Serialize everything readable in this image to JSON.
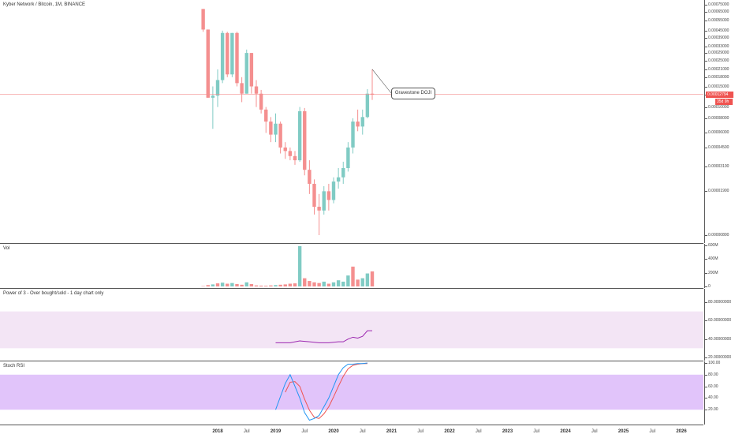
{
  "header": {
    "title": "Kyber Network / Bitcoin, 1M, BINANCE"
  },
  "price_axis": {
    "labels": [
      "0.00075000",
      "0.00065000",
      "0.00055000",
      "0.00045000",
      "0.00039000",
      "0.00033000",
      "0.00029000",
      "0.00025000",
      "0.00021000",
      "0.00018000",
      "0.00015000",
      "0.00012794",
      "0.00010000",
      "0.00008000",
      "0.00006000",
      "0.00004500",
      "0.00003100",
      "0.00001900",
      "0.00000800"
    ],
    "last_price": "0.00012794",
    "countdown": "35d 9h",
    "last_price_color": "#ef5350"
  },
  "annotation": {
    "text": "Gravestone DOJI"
  },
  "volume_pane": {
    "title": "Vol",
    "axis_labels": [
      "600M",
      "400M",
      "200M",
      "0"
    ]
  },
  "indicator_pane": {
    "title": "Power of 3 - Over bought/sold - 1 day chart only",
    "axis_labels": [
      "80.00000000",
      "60.00000000",
      "40.00000000",
      "20.00000000"
    ],
    "line_color": "#9c27b0",
    "band_color": "#f3e5f5"
  },
  "stoch_pane": {
    "title": "Stoch RSI",
    "axis_labels": [
      "100.00",
      "80.00",
      "60.00",
      "40.00",
      "20.00"
    ],
    "k_color": "#2196f3",
    "d_color": "#ef5350",
    "band_color": "#e1c4fa"
  },
  "time_axis": {
    "labels": [
      {
        "text": "2018",
        "year": true
      },
      {
        "text": "Jul",
        "year": false
      },
      {
        "text": "2019",
        "year": true
      },
      {
        "text": "Jul",
        "year": false
      },
      {
        "text": "2020",
        "year": true
      },
      {
        "text": "Jul",
        "year": false
      },
      {
        "text": "2021",
        "year": true
      },
      {
        "text": "Jul",
        "year": false
      },
      {
        "text": "2022",
        "year": true
      },
      {
        "text": "Jul",
        "year": false
      },
      {
        "text": "2023",
        "year": true
      },
      {
        "text": "Jul",
        "year": false
      },
      {
        "text": "2024",
        "year": true
      },
      {
        "text": "Jul",
        "year": false
      },
      {
        "text": "2025",
        "year": true
      },
      {
        "text": "Jul",
        "year": false
      },
      {
        "text": "2026",
        "year": true
      }
    ]
  },
  "colors": {
    "up": "#26a69a",
    "up_fill": "#80cbc4",
    "down": "#ef9a9a",
    "down_fill": "#f48f8f"
  },
  "chart_data": {
    "type": "candlestick",
    "interval": "1M",
    "symbol": "KNC/BTC",
    "candles": [
      {
        "t": "2017-10",
        "o": 0.00069,
        "h": 0.00069,
        "l": 0.00044,
        "c": 0.00046
      },
      {
        "t": "2017-11",
        "o": 0.00046,
        "h": 0.00046,
        "l": 0.00012,
        "c": 0.00012
      },
      {
        "t": "2017-12",
        "o": 0.00012,
        "h": 0.00015,
        "l": 6.5e-05,
        "c": 0.000125
      },
      {
        "t": "2018-01",
        "o": 0.000125,
        "h": 0.00021,
        "l": 0.0001,
        "c": 0.00017
      },
      {
        "t": "2018-02",
        "o": 0.00017,
        "h": 0.00045,
        "l": 0.00016,
        "c": 0.00043
      },
      {
        "t": "2018-03",
        "o": 0.00043,
        "h": 0.00044,
        "l": 0.00018,
        "c": 0.00019
      },
      {
        "t": "2018-04",
        "o": 0.00019,
        "h": 0.00043,
        "l": 0.00018,
        "c": 0.00043
      },
      {
        "t": "2018-05",
        "o": 0.00043,
        "h": 0.00044,
        "l": 0.00015,
        "c": 0.00016
      },
      {
        "t": "2018-06",
        "o": 0.00016,
        "h": 0.00018,
        "l": 0.00011,
        "c": 0.00013
      },
      {
        "t": "2018-07",
        "o": 0.00013,
        "h": 0.00031,
        "l": 0.00013,
        "c": 0.00029
      },
      {
        "t": "2018-08",
        "o": 0.00029,
        "h": 0.00029,
        "l": 0.00013,
        "c": 0.00015
      },
      {
        "t": "2018-09",
        "o": 0.00015,
        "h": 0.00017,
        "l": 0.0001,
        "c": 0.00013
      },
      {
        "t": "2018-10",
        "o": 0.00013,
        "h": 0.00014,
        "l": 8.8e-05,
        "c": 9.5e-05
      },
      {
        "t": "2018-11",
        "o": 9.5e-05,
        "h": 0.0001,
        "l": 6e-05,
        "c": 7.5e-05
      },
      {
        "t": "2018-12",
        "o": 7.5e-05,
        "h": 8.2e-05,
        "l": 5e-05,
        "c": 5.8e-05
      },
      {
        "t": "2019-01",
        "o": 5.8e-05,
        "h": 8.8e-05,
        "l": 5e-05,
        "c": 7.2e-05
      },
      {
        "t": "2019-02",
        "o": 7.2e-05,
        "h": 7.5e-05,
        "l": 4e-05,
        "c": 4.5e-05
      },
      {
        "t": "2019-03",
        "o": 4.5e-05,
        "h": 5e-05,
        "l": 3.6e-05,
        "c": 4.2e-05
      },
      {
        "t": "2019-04",
        "o": 4.2e-05,
        "h": 4.5e-05,
        "l": 3.5e-05,
        "c": 3.8e-05
      },
      {
        "t": "2019-05",
        "o": 3.8e-05,
        "h": 4.2e-05,
        "l": 3.2e-05,
        "c": 3.5e-05
      },
      {
        "t": "2019-06",
        "o": 3.5e-05,
        "h": 0.0001,
        "l": 3.4e-05,
        "c": 9.2e-05
      },
      {
        "t": "2019-07",
        "o": 9.2e-05,
        "h": 9.8e-05,
        "l": 2.6e-05,
        "c": 2.9e-05
      },
      {
        "t": "2019-08",
        "o": 2.9e-05,
        "h": 3.5e-05,
        "l": 1.8e-05,
        "c": 2.2e-05
      },
      {
        "t": "2019-09",
        "o": 2.2e-05,
        "h": 2.4e-05,
        "l": 1.2e-05,
        "c": 1.4e-05
      },
      {
        "t": "2019-10",
        "o": 1.4e-05,
        "h": 1.8e-05,
        "l": 8e-06,
        "c": 1.3e-05
      },
      {
        "t": "2019-11",
        "o": 1.3e-05,
        "h": 2.1e-05,
        "l": 1.2e-05,
        "c": 1.9e-05
      },
      {
        "t": "2019-12",
        "o": 1.9e-05,
        "h": 2.2e-05,
        "l": 1.3e-05,
        "c": 1.6e-05
      },
      {
        "t": "2020-01",
        "o": 1.6e-05,
        "h": 2.5e-05,
        "l": 1.5e-05,
        "c": 2.3e-05
      },
      {
        "t": "2020-02",
        "o": 2.3e-05,
        "h": 3e-05,
        "l": 2e-05,
        "c": 2.5e-05
      },
      {
        "t": "2020-03",
        "o": 2.5e-05,
        "h": 3.4e-05,
        "l": 2.2e-05,
        "c": 3e-05
      },
      {
        "t": "2020-04",
        "o": 3e-05,
        "h": 5e-05,
        "l": 2.8e-05,
        "c": 4.5e-05
      },
      {
        "t": "2020-05",
        "o": 4.5e-05,
        "h": 8e-05,
        "l": 4e-05,
        "c": 7.5e-05
      },
      {
        "t": "2020-06",
        "o": 7.5e-05,
        "h": 9.5e-05,
        "l": 6.2e-05,
        "c": 6.8e-05
      },
      {
        "t": "2020-07",
        "o": 6.8e-05,
        "h": 9.5e-05,
        "l": 5.8e-05,
        "c": 8.2e-05
      },
      {
        "t": "2020-08",
        "o": 8.2e-05,
        "h": 0.000142,
        "l": 8e-05,
        "c": 0.00013
      },
      {
        "t": "2020-09",
        "o": 0.00013,
        "h": 0.00021,
        "l": 0.000115,
        "c": 0.000128
      }
    ],
    "volume": [
      {
        "t": "2017-10",
        "v": 5,
        "dir": "down"
      },
      {
        "t": "2017-11",
        "v": 20,
        "dir": "down"
      },
      {
        "t": "2017-12",
        "v": 30,
        "dir": "up"
      },
      {
        "t": "2018-01",
        "v": 45,
        "dir": "down"
      },
      {
        "t": "2018-02",
        "v": 55,
        "dir": "up"
      },
      {
        "t": "2018-03",
        "v": 40,
        "dir": "down"
      },
      {
        "t": "2018-04",
        "v": 50,
        "dir": "up"
      },
      {
        "t": "2018-05",
        "v": 35,
        "dir": "down"
      },
      {
        "t": "2018-06",
        "v": 25,
        "dir": "down"
      },
      {
        "t": "2018-07",
        "v": 60,
        "dir": "up"
      },
      {
        "t": "2018-08",
        "v": 35,
        "dir": "down"
      },
      {
        "t": "2018-09",
        "v": 15,
        "dir": "down"
      },
      {
        "t": "2018-10",
        "v": 12,
        "dir": "down"
      },
      {
        "t": "2018-11",
        "v": 10,
        "dir": "down"
      },
      {
        "t": "2018-12",
        "v": 15,
        "dir": "down"
      },
      {
        "t": "2019-01",
        "v": 20,
        "dir": "up"
      },
      {
        "t": "2019-02",
        "v": 25,
        "dir": "down"
      },
      {
        "t": "2019-03",
        "v": 30,
        "dir": "down"
      },
      {
        "t": "2019-04",
        "v": 40,
        "dir": "down"
      },
      {
        "t": "2019-05",
        "v": 45,
        "dir": "down"
      },
      {
        "t": "2019-06",
        "v": 590,
        "dir": "up"
      },
      {
        "t": "2019-07",
        "v": 120,
        "dir": "down"
      },
      {
        "t": "2019-08",
        "v": 80,
        "dir": "down"
      },
      {
        "t": "2019-09",
        "v": 60,
        "dir": "down"
      },
      {
        "t": "2019-10",
        "v": 50,
        "dir": "down"
      },
      {
        "t": "2019-11",
        "v": 70,
        "dir": "up"
      },
      {
        "t": "2019-12",
        "v": 40,
        "dir": "down"
      },
      {
        "t": "2020-01",
        "v": 60,
        "dir": "up"
      },
      {
        "t": "2020-02",
        "v": 90,
        "dir": "up"
      },
      {
        "t": "2020-03",
        "v": 70,
        "dir": "up"
      },
      {
        "t": "2020-04",
        "v": 160,
        "dir": "up"
      },
      {
        "t": "2020-05",
        "v": 290,
        "dir": "down"
      },
      {
        "t": "2020-06",
        "v": 100,
        "dir": "down"
      },
      {
        "t": "2020-07",
        "v": 120,
        "dir": "up"
      },
      {
        "t": "2020-08",
        "v": 190,
        "dir": "up"
      },
      {
        "t": "2020-09",
        "v": 220,
        "dir": "down"
      }
    ],
    "indicator": [
      {
        "t": "2019-01",
        "v": 36
      },
      {
        "t": "2019-04",
        "v": 36
      },
      {
        "t": "2019-06",
        "v": 38
      },
      {
        "t": "2019-08",
        "v": 37
      },
      {
        "t": "2019-10",
        "v": 36
      },
      {
        "t": "2019-12",
        "v": 36
      },
      {
        "t": "2020-02",
        "v": 37
      },
      {
        "t": "2020-03",
        "v": 37
      },
      {
        "t": "2020-04",
        "v": 40
      },
      {
        "t": "2020-05",
        "v": 42
      },
      {
        "t": "2020-06",
        "v": 41
      },
      {
        "t": "2020-07",
        "v": 43
      },
      {
        "t": "2020-08",
        "v": 49
      },
      {
        "t": "2020-09",
        "v": 49
      }
    ],
    "stoch_k": [
      {
        "t": "2019-01",
        "v": 20
      },
      {
        "t": "2019-03",
        "v": 65
      },
      {
        "t": "2019-04",
        "v": 80
      },
      {
        "t": "2019-05",
        "v": 60
      },
      {
        "t": "2019-06",
        "v": 40
      },
      {
        "t": "2019-07",
        "v": 15
      },
      {
        "t": "2019-08",
        "v": 2
      },
      {
        "t": "2019-09",
        "v": 5
      },
      {
        "t": "2019-10",
        "v": 10
      },
      {
        "t": "2019-11",
        "v": 25
      },
      {
        "t": "2019-12",
        "v": 40
      },
      {
        "t": "2020-01",
        "v": 60
      },
      {
        "t": "2020-02",
        "v": 80
      },
      {
        "t": "2020-03",
        "v": 92
      },
      {
        "t": "2020-04",
        "v": 98
      },
      {
        "t": "2020-05",
        "v": 98
      },
      {
        "t": "2020-06",
        "v": 99
      },
      {
        "t": "2020-07",
        "v": 99
      },
      {
        "t": "2020-08",
        "v": 100
      }
    ],
    "stoch_d": [
      {
        "t": "2019-03",
        "v": 50
      },
      {
        "t": "2019-04",
        "v": 67
      },
      {
        "t": "2019-05",
        "v": 68
      },
      {
        "t": "2019-06",
        "v": 60
      },
      {
        "t": "2019-07",
        "v": 38
      },
      {
        "t": "2019-08",
        "v": 19
      },
      {
        "t": "2019-09",
        "v": 7
      },
      {
        "t": "2019-10",
        "v": 5
      },
      {
        "t": "2019-11",
        "v": 13
      },
      {
        "t": "2019-12",
        "v": 25
      },
      {
        "t": "2020-01",
        "v": 42
      },
      {
        "t": "2020-02",
        "v": 60
      },
      {
        "t": "2020-03",
        "v": 77
      },
      {
        "t": "2020-04",
        "v": 90
      },
      {
        "t": "2020-05",
        "v": 96
      },
      {
        "t": "2020-06",
        "v": 98
      },
      {
        "t": "2020-07",
        "v": 99
      },
      {
        "t": "2020-08",
        "v": 99
      }
    ],
    "ylim_price": [
      8e-06,
      0.00075
    ],
    "price_scale": "log",
    "ylim_volume": [
      0,
      600
    ],
    "ylim_indicator": [
      20,
      80
    ],
    "ylim_stoch": [
      0,
      100
    ]
  }
}
